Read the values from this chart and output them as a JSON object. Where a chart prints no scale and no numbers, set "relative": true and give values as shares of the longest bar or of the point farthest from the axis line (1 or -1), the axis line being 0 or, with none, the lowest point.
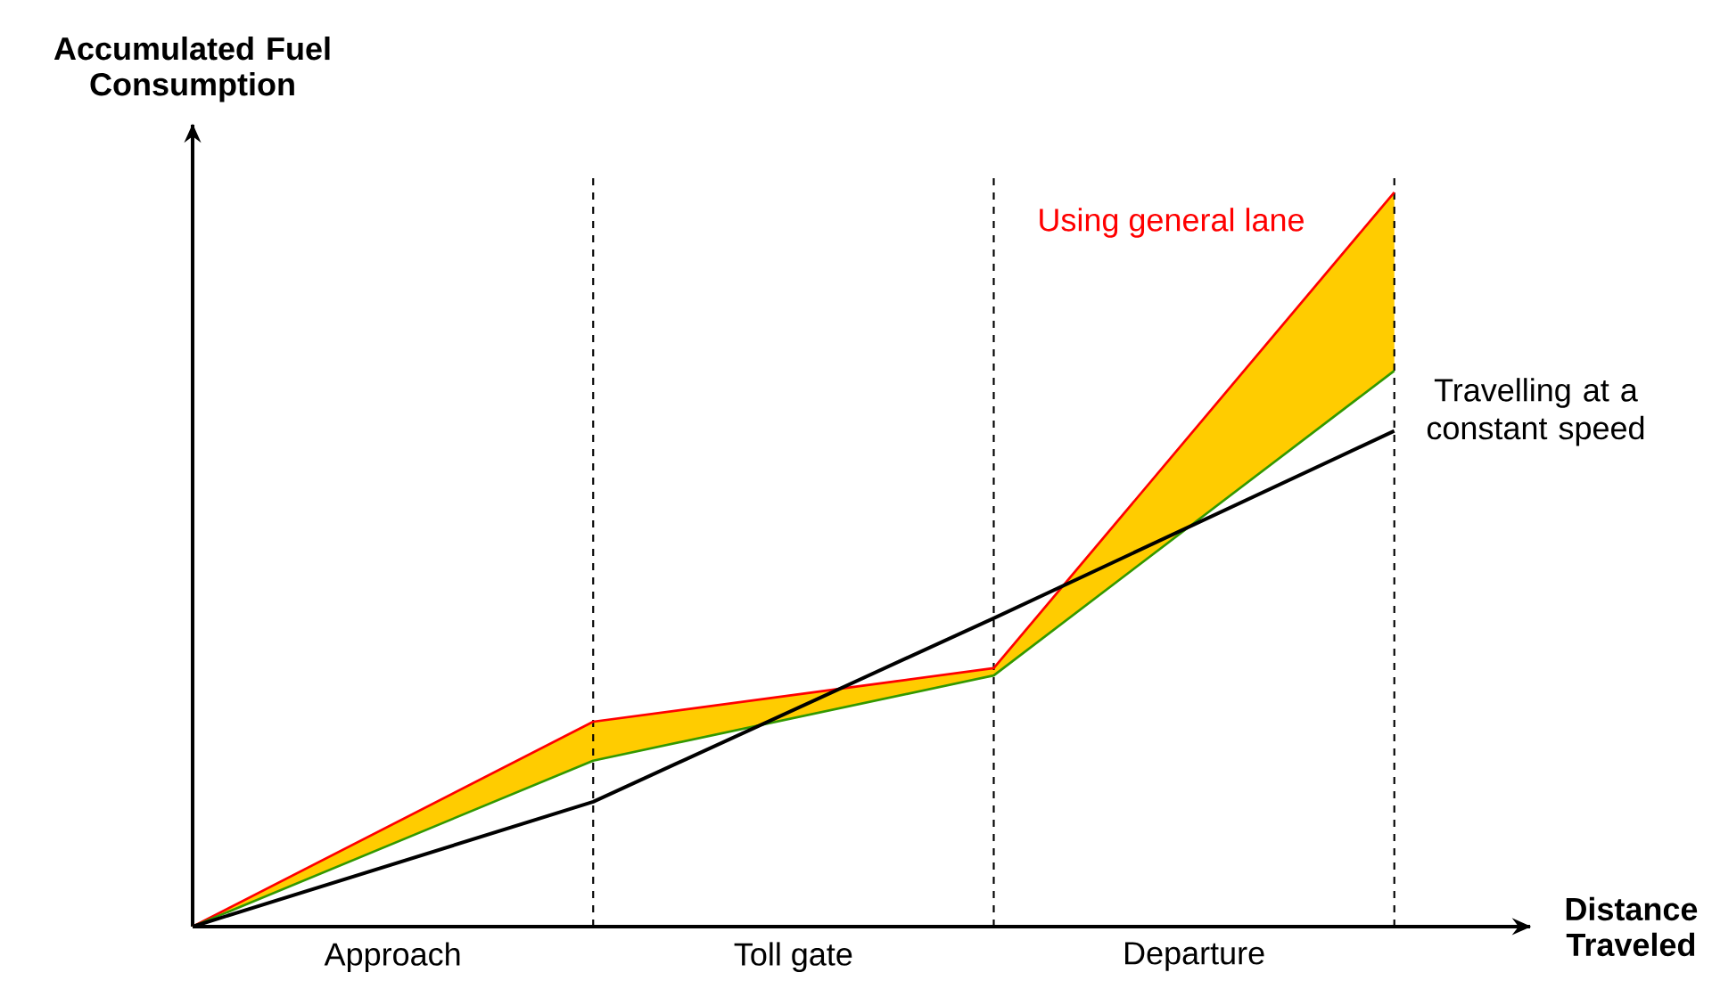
{
  "chart_data": {
    "type": "line",
    "relative": true,
    "xlabel": "Distance Traveled",
    "ylabel": "Accumulated Fuel Consumption",
    "legend": false,
    "tick_labels": false,
    "grid": "x",
    "marker": "none",
    "line_style": "solid",
    "categories": [
      null,
      null,
      null,
      null
    ],
    "series": [
      {
        "name": "Using general lane",
        "color": "#ff0000",
        "values": [
          0,
          0.279,
          0.352,
          1
        ],
        "lower": [
          0,
          0.226,
          0.342,
          0.757
        ],
        "upper": [
          0,
          0.279,
          0.352,
          1
        ]
      },
      {
        "color": "#339900",
        "values": [
          0,
          0.226,
          0.342,
          0.757
        ]
      },
      {
        "name": "Travelling at a constant speed",
        "color": "#000000",
        "values": [
          0,
          0.17,
          0.42,
          0.675
        ]
      }
    ],
    "annotations": [
      "Approach",
      "Toll gate",
      "Departure"
    ]
  }
}
